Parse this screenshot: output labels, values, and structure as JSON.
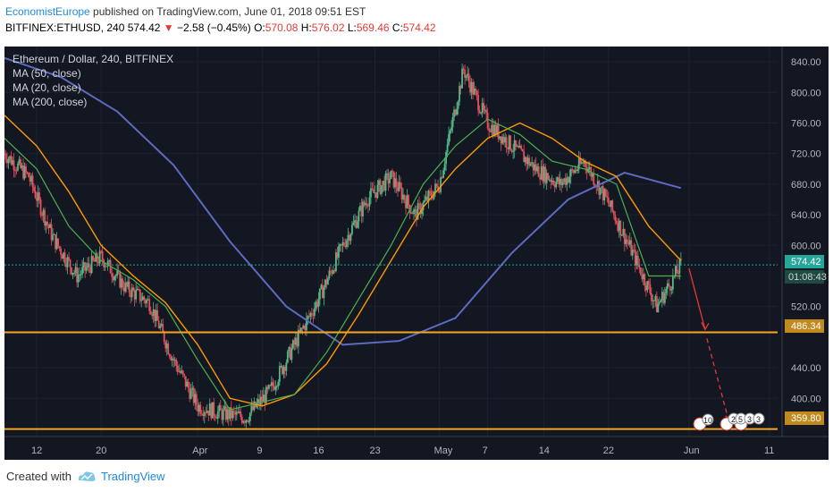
{
  "header": {
    "author": "EconomistEurope",
    "published": " published on TradingView.com, June 01, 2018 09:51 EST",
    "symbol": "BITFINEX:ETHUSD, 240",
    "last": "574.42",
    "arrow": "▼",
    "change": "−2.58 (−0.45%)",
    "o_label": "O:",
    "o": "570.08",
    "h_label": "H:",
    "h": "576.02",
    "l_label": "L:",
    "l": "569.46",
    "c_label": "C:",
    "c": "574.42"
  },
  "legend": {
    "title": "Ethereum / Dollar, 240, BITFINEX",
    "ma50": "MA (50, close)",
    "ma20": "MA (20, close)",
    "ma200": "MA (200, close)"
  },
  "price_scale": {
    "ticks": [
      "840.00",
      "800.00",
      "760.00",
      "720.00",
      "680.00",
      "640.00",
      "600.00",
      "520.00",
      "440.00",
      "400.00"
    ],
    "last_price": "574.42",
    "countdown": "01:08:43",
    "level_upper": "486.34",
    "level_lower": "359.80"
  },
  "time_scale": {
    "ticks": [
      "12",
      "20",
      "Apr",
      "9",
      "16",
      "23",
      "May",
      "7",
      "14",
      "22",
      "Jun",
      "11"
    ]
  },
  "events": {
    "badge1": "10",
    "badge2": "2",
    "badge3": "5",
    "badge4": "3",
    "badge5": "3"
  },
  "footer": {
    "created": "Created with",
    "brand": "TradingView"
  },
  "colors": {
    "background": "#131722",
    "candle_up": "#53b987",
    "candle_down": "#eb4d5c",
    "ma20": "#26a69a",
    "ma50": "#ff9800",
    "ma200": "#3f51b5",
    "level_line": "#f5a623",
    "arrow": "#e53935"
  },
  "chart_data": {
    "type": "candlestick",
    "title": "Ethereum / Dollar, 240, BITFINEX",
    "y_range": [
      350,
      860
    ],
    "x_range_days": [
      "2018-03-08",
      "2018-06-12"
    ],
    "horizontal_levels": [
      486.34,
      359.8
    ],
    "last_price": 574.42,
    "series": [
      {
        "name": "MA (20, close)",
        "x": [
          "2018-03-08",
          "2018-03-12",
          "2018-03-16",
          "2018-03-20",
          "2018-03-24",
          "2018-03-28",
          "2018-04-01",
          "2018-04-05",
          "2018-04-09",
          "2018-04-13",
          "2018-04-17",
          "2018-04-21",
          "2018-04-25",
          "2018-04-29",
          "2018-05-03",
          "2018-05-07",
          "2018-05-11",
          "2018-05-15",
          "2018-05-19",
          "2018-05-23",
          "2018-05-27",
          "2018-05-31"
        ],
        "values": [
          740,
          700,
          625,
          580,
          555,
          520,
          450,
          385,
          395,
          405,
          460,
          530,
          600,
          680,
          730,
          765,
          745,
          710,
          700,
          680,
          560,
          560
        ]
      },
      {
        "name": "MA (50, close)",
        "x": [
          "2018-03-08",
          "2018-03-12",
          "2018-03-16",
          "2018-03-20",
          "2018-03-24",
          "2018-03-28",
          "2018-04-01",
          "2018-04-05",
          "2018-04-09",
          "2018-04-13",
          "2018-04-17",
          "2018-04-21",
          "2018-04-25",
          "2018-04-29",
          "2018-05-03",
          "2018-05-07",
          "2018-05-11",
          "2018-05-15",
          "2018-05-19",
          "2018-05-23",
          "2018-05-27",
          "2018-05-31"
        ],
        "values": [
          770,
          730,
          670,
          600,
          560,
          525,
          470,
          400,
          390,
          405,
          445,
          510,
          580,
          650,
          700,
          740,
          760,
          740,
          710,
          690,
          625,
          580
        ]
      },
      {
        "name": "MA (200, close)",
        "x": [
          "2018-03-08",
          "2018-03-15",
          "2018-03-22",
          "2018-03-29",
          "2018-04-05",
          "2018-04-12",
          "2018-04-19",
          "2018-04-26",
          "2018-05-03",
          "2018-05-10",
          "2018-05-17",
          "2018-05-24",
          "2018-05-31"
        ],
        "values": [
          845,
          820,
          775,
          705,
          605,
          520,
          470,
          475,
          505,
          590,
          660,
          695,
          675
        ]
      },
      {
        "name": "close",
        "x": [
          "2018-03-08",
          "2018-03-11",
          "2018-03-14",
          "2018-03-17",
          "2018-03-20",
          "2018-03-23",
          "2018-03-26",
          "2018-03-29",
          "2018-04-01",
          "2018-04-04",
          "2018-04-07",
          "2018-04-10",
          "2018-04-13",
          "2018-04-16",
          "2018-04-19",
          "2018-04-22",
          "2018-04-25",
          "2018-04-28",
          "2018-05-01",
          "2018-05-04",
          "2018-05-07",
          "2018-05-10",
          "2018-05-13",
          "2018-05-16",
          "2018-05-19",
          "2018-05-22",
          "2018-05-25",
          "2018-05-28",
          "2018-05-31"
        ],
        "values": [
          720,
          690,
          610,
          560,
          585,
          545,
          525,
          450,
          390,
          380,
          375,
          410,
          470,
          530,
          600,
          660,
          690,
          640,
          680,
          830,
          760,
          730,
          700,
          680,
          710,
          655,
          590,
          520,
          574
        ]
      }
    ]
  }
}
